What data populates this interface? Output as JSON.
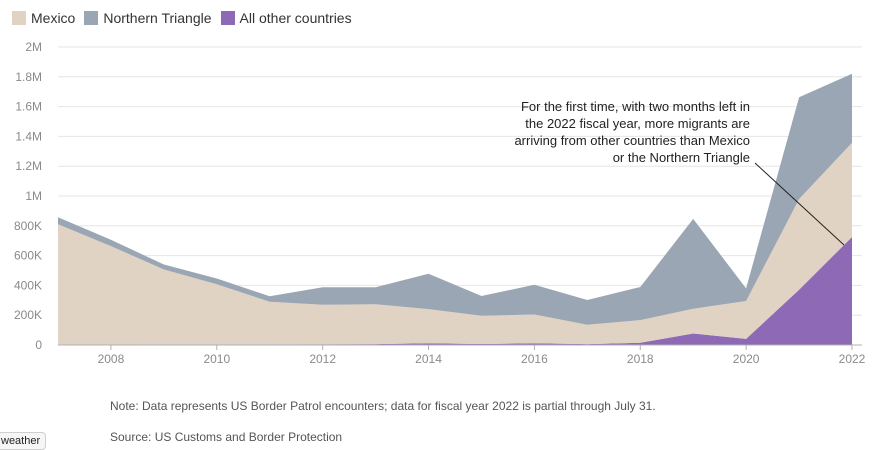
{
  "chart_data": {
    "type": "area",
    "stacked": true,
    "x": [
      2007,
      2008,
      2009,
      2010,
      2011,
      2012,
      2013,
      2014,
      2015,
      2016,
      2017,
      2018,
      2019,
      2020,
      2021,
      2022
    ],
    "series": [
      {
        "name": "All other countries",
        "color": "#8e69b5",
        "values": [
          2000,
          3000,
          4000,
          4000,
          4000,
          5000,
          6000,
          12000,
          7000,
          12000,
          6000,
          15000,
          77000,
          41000,
          371000,
          725000
        ]
      },
      {
        "name": "Mexico",
        "color": "#e0d3c3",
        "values": [
          808000,
          661000,
          503000,
          404000,
          286000,
          265000,
          268000,
          229000,
          189000,
          193000,
          130000,
          152000,
          166000,
          254000,
          609000,
          633000
        ]
      },
      {
        "name": "Northern Triangle",
        "color": "#9aa6b3",
        "values": [
          48000,
          42000,
          33000,
          38000,
          37000,
          117000,
          113000,
          237000,
          133000,
          200000,
          166000,
          222000,
          603000,
          85000,
          683000,
          462000
        ]
      }
    ],
    "xticks": [
      "2008",
      "2010",
      "2012",
      "2014",
      "2016",
      "2018",
      "2020",
      "2022"
    ],
    "yticks": [
      "0",
      "200K",
      "400K",
      "600K",
      "800K",
      "1M",
      "1.2M",
      "1.4M",
      "1.6M",
      "1.8M",
      "2M"
    ],
    "ylim": [
      0,
      2000000
    ],
    "xlim": [
      2007,
      2022
    ],
    "grid": true,
    "legend_position": "top-left",
    "annotation": {
      "lines": [
        "For the first time, with two months left in",
        "the 2022 fiscal year, more migrants are",
        "arriving from other countries than Mexico",
        "or the Northern Triangle"
      ],
      "points_to": {
        "x": 2022,
        "y": 725000
      }
    }
  },
  "legend": [
    {
      "label": "Mexico",
      "color": "#e0d3c3"
    },
    {
      "label": "Northern Triangle",
      "color": "#9aa6b3"
    },
    {
      "label": "All other countries",
      "color": "#8e69b5"
    }
  ],
  "footer": {
    "note": "Note: Data represents US Border Patrol encounters; data for fiscal year 2022 is partial through July 31.",
    "source": "Source: US Customs and Border Protection"
  },
  "chip": {
    "label": "weather"
  }
}
